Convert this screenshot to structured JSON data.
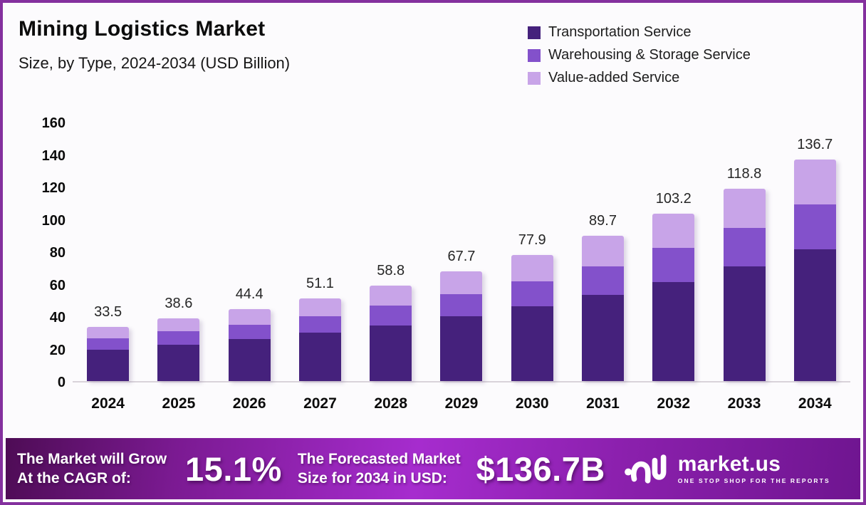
{
  "header": {
    "title": "Mining Logistics Market",
    "subtitle": "Size, by Type, 2024-2034 (USD Billion)"
  },
  "colors": {
    "frame_border": "#84309e",
    "transportation": "#45217c",
    "warehousing": "#8351cb",
    "value_added": "#c8a4e8",
    "axis_baseline": "#d9d3da",
    "banner_gradient_mid": "#a62cce"
  },
  "chart_data": {
    "type": "bar",
    "stacked": true,
    "title": "Mining Logistics Market",
    "subtitle": "Size, by Type, 2024-2034 (USD Billion)",
    "xlabel": "",
    "ylabel": "",
    "ylim": [
      0,
      160
    ],
    "yticks": [
      0,
      20,
      40,
      60,
      80,
      100,
      120,
      140,
      160
    ],
    "grid": false,
    "legend_position": "top-right",
    "categories": [
      "2024",
      "2025",
      "2026",
      "2027",
      "2028",
      "2029",
      "2030",
      "2031",
      "2032",
      "2033",
      "2034"
    ],
    "series": [
      {
        "name": "Transportation Service",
        "color": "#45217c",
        "values": [
          19.5,
          22.6,
          26.0,
          29.9,
          34.4,
          40.0,
          46.0,
          53.2,
          61.3,
          70.8,
          81.4
        ]
      },
      {
        "name": "Warehousing & Storage Service",
        "color": "#8351cb",
        "values": [
          7.0,
          8.2,
          8.6,
          10.2,
          12.0,
          13.6,
          15.7,
          17.7,
          21.0,
          23.9,
          27.6
        ]
      },
      {
        "name": "Value-added Service",
        "color": "#c8a4e8",
        "values": [
          7.0,
          7.8,
          9.8,
          11.0,
          12.4,
          14.1,
          16.2,
          18.8,
          20.9,
          24.1,
          27.7
        ]
      }
    ],
    "totals_labels": [
      "33.5",
      "38.6",
      "44.4",
      "51.1",
      "58.8",
      "67.7",
      "77.9",
      "89.7",
      "103.2",
      "118.8",
      "136.7"
    ]
  },
  "banner": {
    "cagr_label_line1": "The Market will Grow",
    "cagr_label_line2": "At the CAGR of:",
    "cagr_value": "15.1%",
    "forecast_label_line1": "The Forecasted Market",
    "forecast_label_line2": "Size for 2034 in USD:",
    "forecast_value": "$136.7B",
    "logo_text": "market.us",
    "logo_tagline": "ONE STOP SHOP FOR THE REPORTS"
  }
}
